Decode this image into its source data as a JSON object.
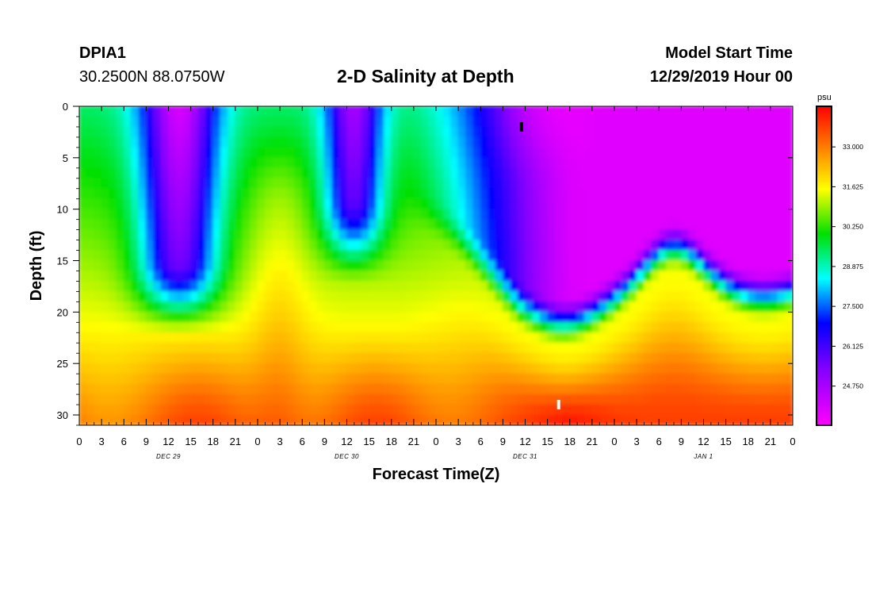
{
  "header": {
    "station_id": "DPIA1",
    "coordinates": "30.2500N 88.0750W",
    "title": "2-D Salinity at Depth",
    "model_start_label": "Model Start Time",
    "model_start_time": "12/29/2019 Hour 00"
  },
  "chart_data": {
    "type": "heatmap",
    "title": "2-D Salinity at Depth",
    "xlabel": "Forecast Time(Z)",
    "ylabel": "Depth (ft)",
    "x_ticks": [
      "0",
      "3",
      "6",
      "9",
      "12",
      "15",
      "18",
      "21",
      "0",
      "3",
      "6",
      "9",
      "12",
      "15",
      "18",
      "21",
      "0",
      "3",
      "6",
      "9",
      "12",
      "15",
      "18",
      "21",
      "0",
      "3",
      "6",
      "9",
      "12",
      "15",
      "18",
      "21",
      "0"
    ],
    "x_range_hours": [
      0,
      96
    ],
    "date_labels": [
      {
        "hour": 12,
        "label": "DEC 29"
      },
      {
        "hour": 36,
        "label": "DEC 30"
      },
      {
        "hour": 60,
        "label": "DEC 31"
      },
      {
        "hour": 84,
        "label": "JAN 1"
      }
    ],
    "y_ticks": [
      0,
      5,
      10,
      15,
      20,
      25,
      30
    ],
    "y_range_ft": [
      0,
      31
    ],
    "colorbar": {
      "unit": "psu",
      "range": [
        23.4,
        34.4
      ],
      "labels": [
        "33.000",
        "31.625",
        "30.250",
        "28.875",
        "27.500",
        "26.125",
        "24.750"
      ]
    },
    "markers": [
      {
        "hour": 59.5,
        "depth_ft": 2,
        "color": "#000000"
      },
      {
        "hour": 64.5,
        "depth_ft": 29,
        "color": "#ffffff"
      }
    ]
  }
}
